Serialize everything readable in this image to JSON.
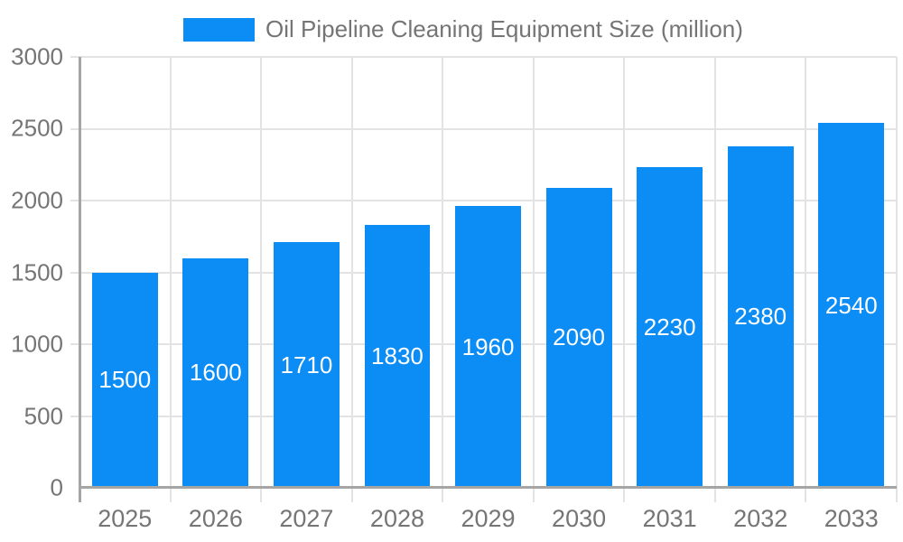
{
  "colors": {
    "bar": "#0b8df5",
    "bar_label": "#ffffff",
    "grid": "#e3e3e3",
    "axis": "#a5a5a5",
    "tick_text": "#757575",
    "background": "#ffffff"
  },
  "chart_data": {
    "type": "bar",
    "title": "Oil Pipeline Cleaning Equipment Size (million)",
    "categories": [
      "2025",
      "2026",
      "2027",
      "2028",
      "2029",
      "2030",
      "2031",
      "2032",
      "2033"
    ],
    "series": [
      {
        "name": "Oil Pipeline Cleaning Equipment Size (million)",
        "values": [
          1500,
          1600,
          1710,
          1830,
          1960,
          2090,
          2230,
          2380,
          2540
        ]
      }
    ],
    "value_labels": [
      "1500",
      "1600",
      "1710",
      "1830",
      "1960",
      "2090",
      "2230",
      "2380",
      "2540"
    ],
    "xlabel": "",
    "ylabel": "",
    "ylim": [
      0,
      3000
    ],
    "y_ticks": [
      0,
      500,
      1000,
      1500,
      2000,
      2500,
      3000
    ],
    "y_tick_labels": [
      "0",
      "500",
      "1000",
      "1500",
      "2000",
      "2500",
      "3000"
    ],
    "grid": true,
    "legend_position": "top",
    "value_labels_position": "inside-center"
  }
}
